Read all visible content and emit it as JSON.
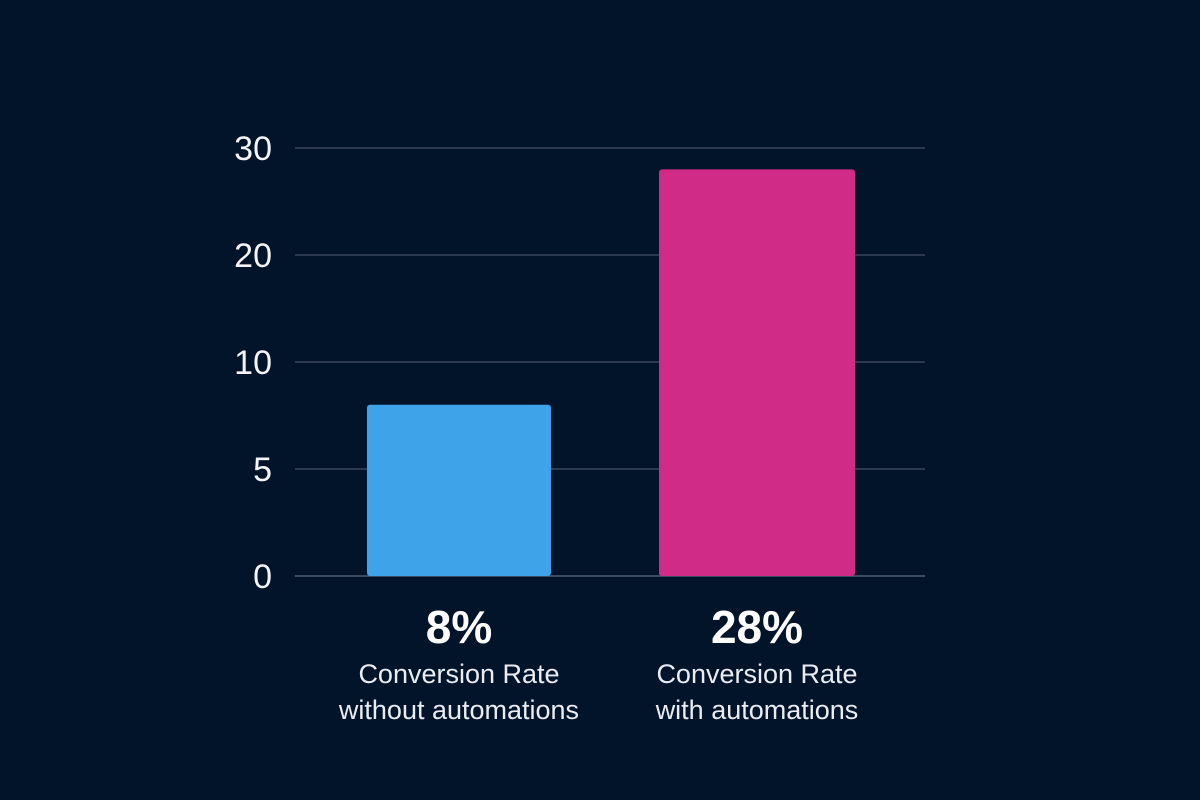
{
  "chart_data": {
    "type": "bar",
    "title": "",
    "xlabel": "",
    "ylabel": "",
    "ylim": [
      0,
      30
    ],
    "grid": true,
    "yticks": [
      {
        "value": 30,
        "label": "30"
      },
      {
        "value": 20,
        "label": "20"
      },
      {
        "value": 10,
        "label": "10"
      },
      {
        "value": 5,
        "label": "5"
      },
      {
        "value": 0,
        "label": "0"
      }
    ],
    "bars": [
      {
        "value": 8,
        "value_label": "8%",
        "label_line1": "Conversion Rate",
        "label_line2": "without automations",
        "color": "#3ea3e8"
      },
      {
        "value": 28,
        "value_label": "28%",
        "label_line1": "Conversion Rate",
        "label_line2": "with automations",
        "color": "#cf2b87"
      }
    ]
  }
}
